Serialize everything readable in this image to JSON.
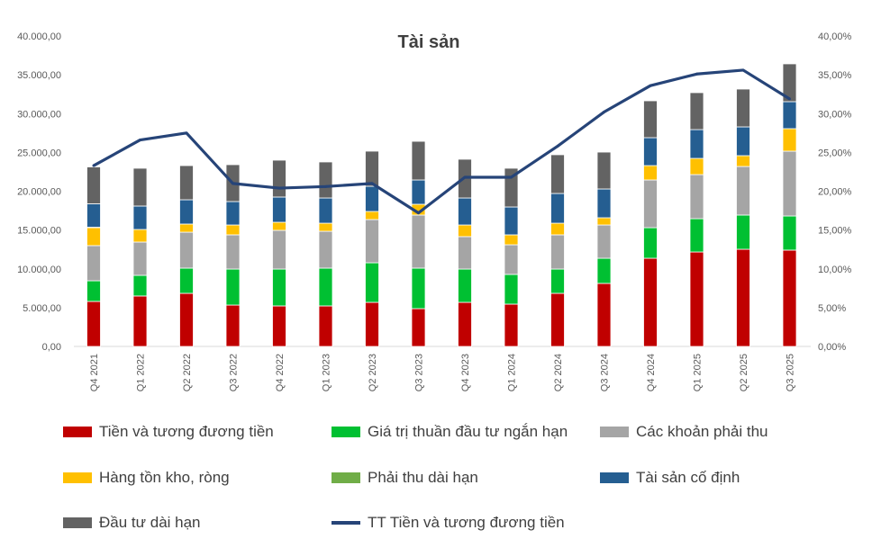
{
  "chart_data": {
    "type": "bar",
    "stacked": true,
    "title": "Tài sản",
    "categories": [
      "Q4 2021",
      "Q1 2022",
      "Q2 2022",
      "Q3 2022",
      "Q4 2022",
      "Q1 2023",
      "Q2 2023",
      "Q3 2023",
      "Q4 2023",
      "Q1 2024",
      "Q2 2024",
      "Q3 2024",
      "Q4 2024",
      "Q1 2025",
      "Q2 2025",
      "Q3 2025"
    ],
    "ylim": [
      0,
      40000
    ],
    "y_ticks": [
      "0,00",
      "5.000,00",
      "10.000,00",
      "15.000,00",
      "20.000,00",
      "25.000,00",
      "30.000,00",
      "35.000,00",
      "40.000,00"
    ],
    "y2lim": [
      0,
      40
    ],
    "y2_ticks": [
      "0,00%",
      "5,00%",
      "10,00%",
      "15,00%",
      "20,00%",
      "25,00%",
      "30,00%",
      "35,00%",
      "40,00%"
    ],
    "grid": false,
    "legend_position": "bottom",
    "series": [
      {
        "name": "Tiền và tương đương tiền",
        "color": "#C00000",
        "values": [
          5800,
          6500,
          6840,
          5330,
          5220,
          5220,
          5680,
          4870,
          5680,
          5450,
          6840,
          8120,
          11360,
          12170,
          12520,
          12410
        ]
      },
      {
        "name": "Giá trị thuần đầu tư ngắn hạn",
        "color": "#00C032",
        "values": [
          2660,
          2660,
          3250,
          4640,
          4750,
          4870,
          5100,
          5220,
          4290,
          3830,
          3130,
          3240,
          3940,
          4290,
          4410,
          4400
        ]
      },
      {
        "name": "Các khoản phải thu",
        "color": "#A5A5A5",
        "values": [
          4530,
          4290,
          4630,
          4410,
          4990,
          4750,
          5570,
          6840,
          4180,
          3820,
          4410,
          4290,
          6150,
          5680,
          6260,
          8350
        ]
      },
      {
        "name": "Hàng tồn kho, ròng",
        "color": "#FFC000",
        "values": [
          2310,
          1620,
          1050,
          1270,
          1040,
          1040,
          1040,
          1390,
          1500,
          1280,
          1500,
          930,
          1850,
          2090,
          1390,
          2900
        ]
      },
      {
        "name": "Phải thu dài hạn",
        "color": "#70AD47",
        "values": [
          60,
          0,
          0,
          0,
          0,
          0,
          0,
          0,
          0,
          0,
          0,
          0,
          0,
          0,
          0,
          0
        ]
      },
      {
        "name": "Tài sản cố định",
        "color": "#255E91",
        "values": [
          3020,
          3020,
          3130,
          3020,
          3250,
          3250,
          3250,
          3130,
          3480,
          3590,
          3830,
          3710,
          3600,
          3710,
          3710,
          3480
        ]
      },
      {
        "name": "Đầu tư dài hạn",
        "color": "#636363",
        "values": [
          4750,
          4870,
          4400,
          4750,
          4750,
          4640,
          4520,
          4980,
          4990,
          4990,
          4990,
          4750,
          4750,
          4760,
          4870,
          4870
        ]
      }
    ],
    "line_series": {
      "name": "TT Tiền và tương đương tiền",
      "color": "#264478",
      "axis": "right",
      "values": [
        23.3,
        26.6,
        27.5,
        21.0,
        20.4,
        20.6,
        21.0,
        17.2,
        21.8,
        21.8,
        25.8,
        30.2,
        33.6,
        35.1,
        35.6,
        31.9
      ]
    }
  }
}
